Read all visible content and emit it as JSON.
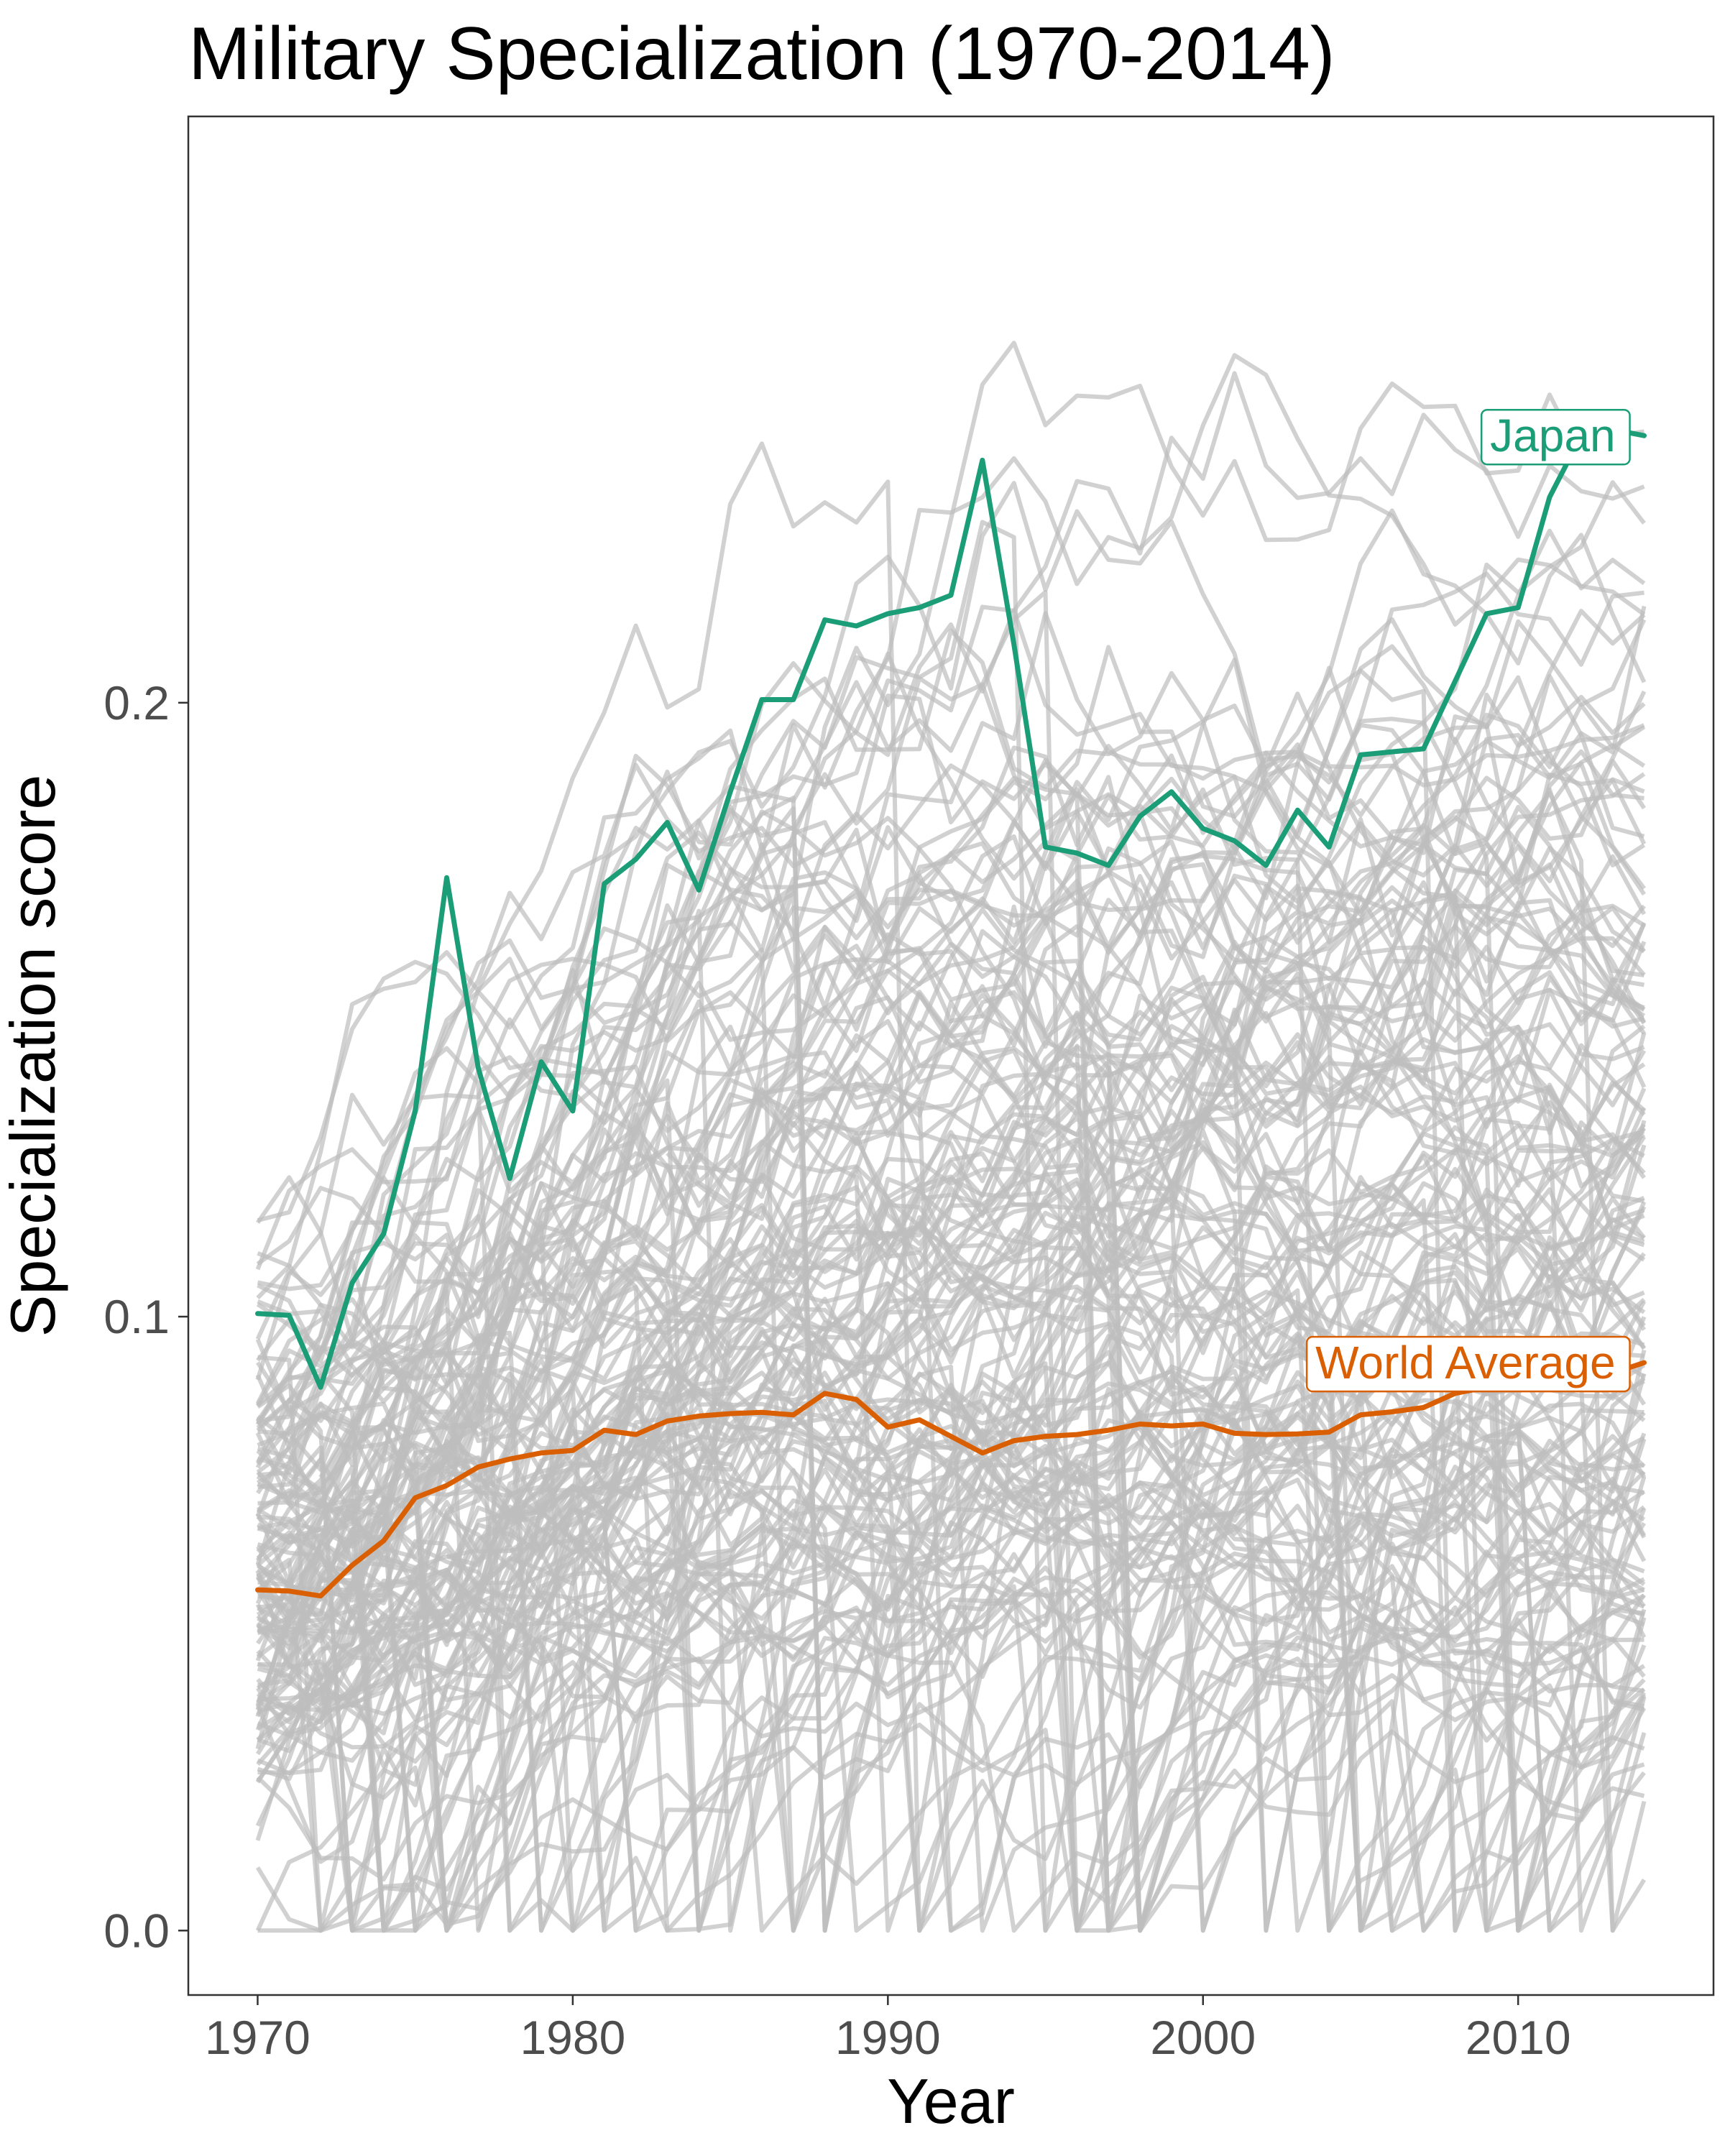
{
  "chart_data": {
    "type": "line",
    "title": "Military Specialization (1970-2014)",
    "xlabel": "Year",
    "ylabel": "Specialization score",
    "xlim": [
      1967.8,
      2016.2
    ],
    "ylim": [
      -0.0105,
      0.2955
    ],
    "x_ticks": [
      1970,
      1980,
      1990,
      2000,
      2010
    ],
    "x_tick_labels": [
      "1970",
      "1980",
      "1990",
      "2000",
      "2010"
    ],
    "y_ticks": [
      0.0,
      0.1,
      0.2
    ],
    "y_tick_labels": [
      "0.0",
      "0.1",
      "0.2"
    ],
    "grid": false,
    "legend": "none (direct labels)",
    "background_country_count": 150,
    "background_color": "#bebebe",
    "highlight_series": [
      {
        "name": "Japan",
        "label": "Japan",
        "color": "#1b9e77",
        "x": [
          1970,
          1971,
          1972,
          1973,
          1974,
          1975,
          1976,
          1977,
          1978,
          1979,
          1980,
          1981,
          1982,
          1983,
          1984,
          1985,
          1986,
          1987,
          1988,
          1989,
          1990,
          1991,
          1992,
          1993,
          1994,
          1995,
          1996,
          1997,
          1998,
          1999,
          2000,
          2001,
          2002,
          2003,
          2004,
          2005,
          2006,
          2007,
          2008,
          2009,
          2010,
          2011,
          2012,
          2013,
          2014
        ],
        "y": [
          0.1005,
          0.1002,
          0.0885,
          0.1055,
          0.1135,
          0.1335,
          0.1715,
          0.1405,
          0.1225,
          0.1415,
          0.1335,
          0.1705,
          0.1745,
          0.1805,
          0.1695,
          0.1855,
          0.2005,
          0.2005,
          0.2135,
          0.2125,
          0.2145,
          0.2155,
          0.2175,
          0.2395,
          0.2095,
          0.1765,
          0.1755,
          0.1735,
          0.1815,
          0.1855,
          0.1795,
          0.1775,
          0.1735,
          0.1825,
          0.1765,
          0.1915,
          0.192,
          0.1925,
          0.2035,
          0.2145,
          0.2155,
          0.2335,
          0.2435,
          0.2445,
          0.2435
        ]
      },
      {
        "name": "World Average",
        "label": "World Average",
        "color": "#d95f02",
        "x": [
          1970,
          1971,
          1972,
          1973,
          1974,
          1975,
          1976,
          1977,
          1978,
          1979,
          1980,
          1981,
          1982,
          1983,
          1984,
          1985,
          1986,
          1987,
          1988,
          1989,
          1990,
          1991,
          1992,
          1993,
          1994,
          1995,
          1996,
          1997,
          1998,
          1999,
          2000,
          2001,
          2002,
          2003,
          2004,
          2005,
          2006,
          2007,
          2008,
          2009,
          2010,
          2011,
          2012,
          2013,
          2014
        ],
        "y": [
          0.0555,
          0.0553,
          0.0545,
          0.0595,
          0.0635,
          0.0705,
          0.0725,
          0.0755,
          0.0768,
          0.0778,
          0.0782,
          0.0815,
          0.0808,
          0.083,
          0.0838,
          0.0842,
          0.0844,
          0.084,
          0.0875,
          0.0865,
          0.082,
          0.0832,
          0.0805,
          0.0778,
          0.0798,
          0.0805,
          0.0808,
          0.0815,
          0.0825,
          0.0822,
          0.0825,
          0.081,
          0.0808,
          0.0809,
          0.0812,
          0.084,
          0.0845,
          0.0852,
          0.0875,
          0.0885,
          0.089,
          0.0892,
          0.0905,
          0.0908,
          0.0925
        ]
      }
    ]
  }
}
